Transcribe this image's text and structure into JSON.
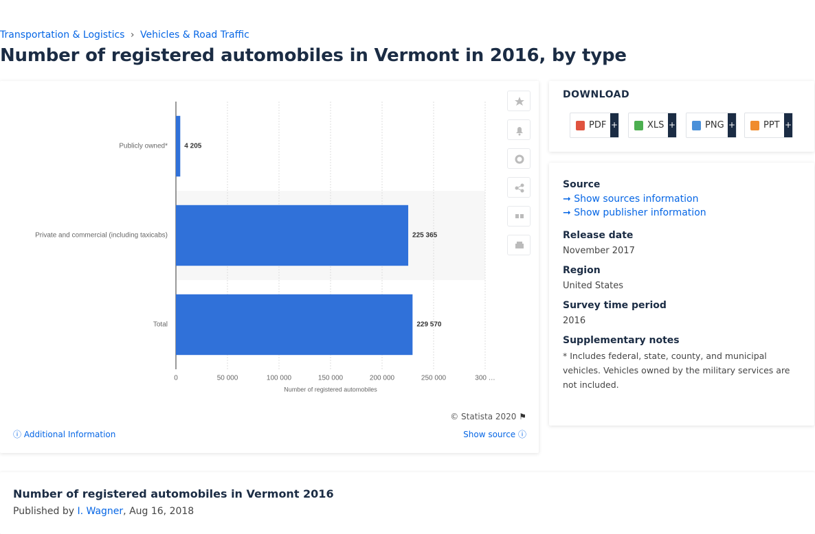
{
  "breadcrumb": [
    "Transportation & Logistics",
    "Vehicles & Road Traffic"
  ],
  "breadcrumb_separator": "›",
  "title": "Number of registered automobiles in Vermont in 2016, by type",
  "chart_data": {
    "type": "bar",
    "orientation": "horizontal",
    "categories": [
      "Publicly owned*",
      "Private and commercial (including taxicabs)",
      "Total"
    ],
    "values": [
      4205,
      225365,
      229570
    ],
    "value_labels": [
      "4 205",
      "225 365",
      "229 570"
    ],
    "color": "#3071d9",
    "xlim": [
      0,
      300000
    ],
    "xticks": [
      0,
      {
        "value": 50000,
        "label": "50 000"
      },
      {
        "value": 100000,
        "label": "100 000"
      },
      {
        "value": 150000,
        "label": "150 000"
      },
      {
        "value": 200000,
        "label": "200 000"
      },
      {
        "value": 250000,
        "label": "250 000"
      },
      {
        "value": 300000,
        "label": "300 …"
      }
    ],
    "xlabel": "Number of registered automobiles",
    "grid": true
  },
  "credit": "© Statista 2020",
  "additional_info": "Additional Information",
  "show_source": "Show source",
  "download": {
    "heading": "DOWNLOAD",
    "buttons": [
      "PDF",
      "XLS",
      "PNG",
      "PPT"
    ],
    "plus": "+"
  },
  "details": {
    "source_heading": "Source",
    "links": [
      "Show sources information",
      "Show publisher information"
    ],
    "items": [
      {
        "label": "Release date",
        "value": "November 2017"
      },
      {
        "label": "Region",
        "value": "United States"
      },
      {
        "label": "Survey time period",
        "value": "2016"
      },
      {
        "label": "Supplementary notes",
        "value": "* Includes federal, state, county, and municipal vehicles. Vehicles owned by the military services are not included."
      }
    ]
  },
  "footer": {
    "title": "Number of registered automobiles in Vermont 2016",
    "published_by": "Published by",
    "author": "I. Wagner",
    "date": ", Aug 16, 2018"
  }
}
